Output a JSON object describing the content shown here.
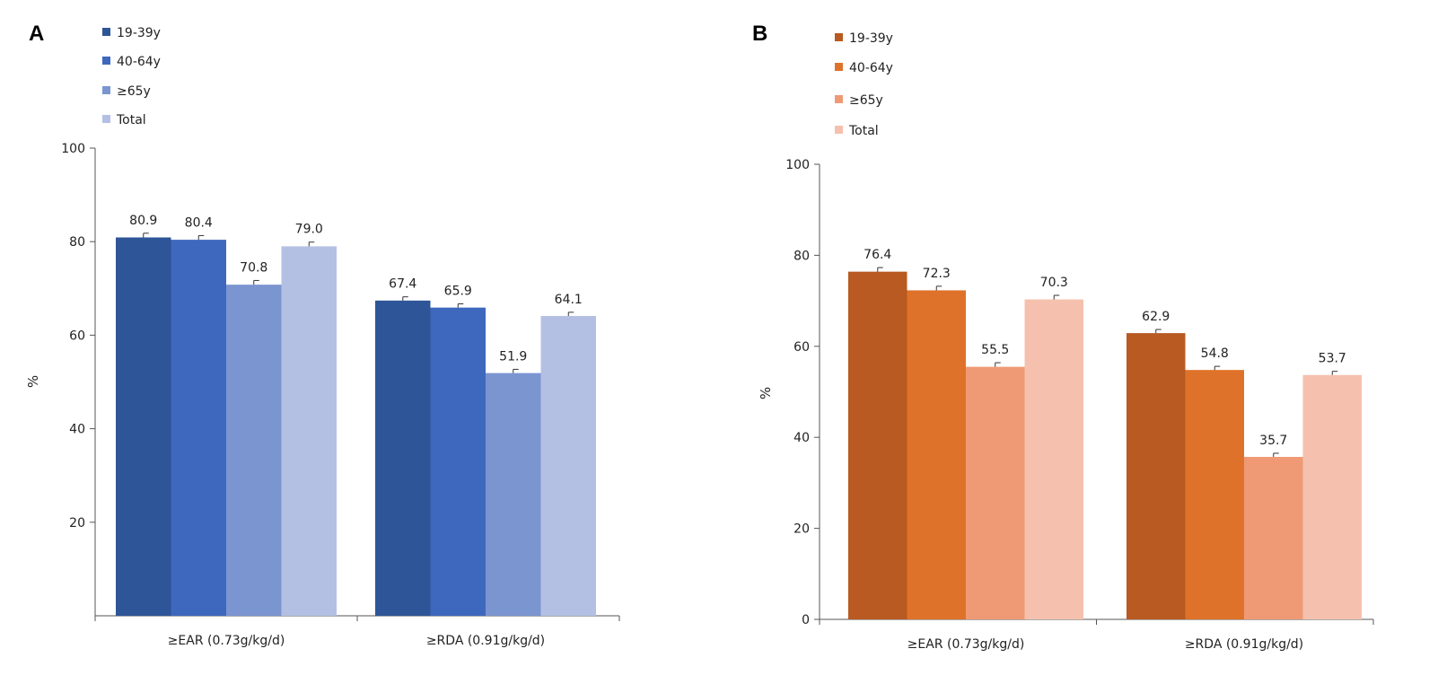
{
  "chart_data": [
    {
      "panel": "A",
      "type": "bar",
      "title": "",
      "xlabel": "",
      "ylabel": "%",
      "ylim": [
        0,
        100
      ],
      "yticks": [
        20,
        40,
        60,
        80,
        100
      ],
      "categories": [
        "≥EAR (0.73g/kg/d)",
        "≥RDA (0.91g/kg/d)"
      ],
      "legend_position": "top-left",
      "error_bars": true,
      "series": [
        {
          "name": "19-39y",
          "color": "#2e5597",
          "values": [
            80.9,
            67.4
          ]
        },
        {
          "name": "40-64y",
          "color": "#3e68bd",
          "values": [
            80.4,
            65.9
          ]
        },
        {
          "name": "≥65y",
          "color": "#7b95d1",
          "values": [
            70.8,
            51.9
          ]
        },
        {
          "name": "Total",
          "color": "#b4c0e3",
          "values": [
            79.0,
            64.1
          ]
        }
      ],
      "labels": [
        [
          "80.9",
          "67.4"
        ],
        [
          "80.4",
          "65.9"
        ],
        [
          "70.8",
          "51.9"
        ],
        [
          "79.0",
          "64.1"
        ]
      ]
    },
    {
      "panel": "B",
      "type": "bar",
      "title": "",
      "xlabel": "",
      "ylabel": "%",
      "ylim": [
        0,
        100
      ],
      "yticks": [
        0,
        20,
        40,
        60,
        80,
        100
      ],
      "categories": [
        "≥EAR (0.73g/kg/d)",
        "≥RDA (0.91g/kg/d)"
      ],
      "legend_position": "top-left",
      "error_bars": true,
      "series": [
        {
          "name": "19-39y",
          "color": "#b85a22",
          "values": [
            76.4,
            62.9
          ]
        },
        {
          "name": "40-64y",
          "color": "#df722a",
          "values": [
            72.3,
            54.8
          ]
        },
        {
          "name": "≥65y",
          "color": "#ef9a74",
          "values": [
            55.5,
            35.7
          ]
        },
        {
          "name": "Total",
          "color": "#f5c1ae",
          "values": [
            70.3,
            53.7
          ]
        }
      ],
      "labels": [
        [
          "76.4",
          "62.9"
        ],
        [
          "72.3",
          "54.8"
        ],
        [
          "55.5",
          "35.7"
        ],
        [
          "70.3",
          "53.7"
        ]
      ]
    }
  ]
}
